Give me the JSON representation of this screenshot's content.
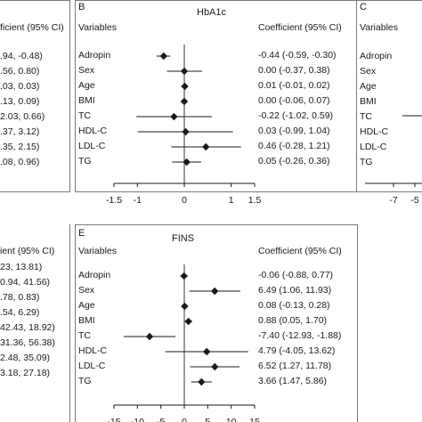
{
  "chart_data": [
    {
      "panel": "A",
      "type": "forest",
      "visible_header": "ficient (95% CI)",
      "rows": [
        {
          "text": ".94, -0.48)"
        },
        {
          "text": ".56, 0.80)"
        },
        {
          "text": ".03, 0.03)"
        },
        {
          "text": ".13, 0.09)"
        },
        {
          "text": "2.03, 0.66)"
        },
        {
          "text": ".37, 3.12)"
        },
        {
          "text": ".35, 2.15)"
        },
        {
          "text": ".08, 0.96)"
        }
      ]
    },
    {
      "panel": "B",
      "type": "forest",
      "title": "HbA1c",
      "var_header": "Variables",
      "coef_header": "Coefficient (95% CI)",
      "xlim": [
        -1.5,
        1.5
      ],
      "ticks": [
        -1.5,
        -1,
        0,
        1,
        1.5
      ],
      "rows": [
        {
          "variable": "Adropin",
          "est": -0.44,
          "lo": -0.59,
          "hi": -0.3,
          "text": "-0.44 (-0.59, -0.30)"
        },
        {
          "variable": "Sex",
          "est": 0.0,
          "lo": -0.37,
          "hi": 0.38,
          "text": "0.00 (-0.37, 0.38)"
        },
        {
          "variable": "Age",
          "est": 0.01,
          "lo": -0.01,
          "hi": 0.02,
          "text": "0.01 (-0.01, 0.02)"
        },
        {
          "variable": "BMI",
          "est": 0.0,
          "lo": -0.06,
          "hi": 0.07,
          "text": "0.00 (-0.06, 0.07)"
        },
        {
          "variable": "TC",
          "est": -0.22,
          "lo": -1.02,
          "hi": 0.59,
          "text": "-0.22 (-1.02, 0.59)"
        },
        {
          "variable": "HDL-C",
          "est": 0.03,
          "lo": -0.99,
          "hi": 1.04,
          "text": "0.03 (-0.99, 1.04)"
        },
        {
          "variable": "LDL-C",
          "est": 0.46,
          "lo": -0.28,
          "hi": 1.21,
          "text": "0.46 (-0.28, 1.21)"
        },
        {
          "variable": "TG",
          "est": 0.05,
          "lo": -0.26,
          "hi": 0.36,
          "text": "0.05 (-0.26, 0.36)"
        }
      ]
    },
    {
      "panel": "C",
      "type": "forest",
      "var_header": "Variables",
      "ticks": [
        -7,
        -5
      ],
      "rows": [
        {
          "variable": "Adropin"
        },
        {
          "variable": "Sex"
        },
        {
          "variable": "Age"
        },
        {
          "variable": "BMI"
        },
        {
          "variable": "TC"
        },
        {
          "variable": "HDL-C"
        },
        {
          "variable": "LDL-C"
        },
        {
          "variable": "TG"
        }
      ]
    },
    {
      "panel": "D",
      "type": "forest",
      "visible_header": "ient (95% CI)",
      "rows": [
        {
          "text": "23, 13.81)"
        },
        {
          "text": "0.94, 41.56)"
        },
        {
          "text": ".78, 0.83)"
        },
        {
          "text": ".54, 6.29)"
        },
        {
          "text": "42.43, 18.92)"
        },
        {
          "text": "31.36, 56.38)"
        },
        {
          "text": "2.48, 35.09)"
        },
        {
          "text": "3.18, 27.18)"
        }
      ]
    },
    {
      "panel": "E",
      "type": "forest",
      "title": "FINS",
      "var_header": "Variables",
      "coef_header": "Coefficient (95% CI)",
      "xlim": [
        -15,
        15
      ],
      "ticks": [
        -15,
        -10,
        -5,
        0,
        5,
        10,
        15
      ],
      "rows": [
        {
          "variable": "Adropin",
          "est": -0.06,
          "lo": -0.88,
          "hi": 0.77,
          "text": "-0.06 (-0.88, 0.77)"
        },
        {
          "variable": "Sex",
          "est": 6.49,
          "lo": 1.06,
          "hi": 11.93,
          "text": "6.49 (1.06, 11.93)"
        },
        {
          "variable": "Age",
          "est": 0.08,
          "lo": -0.13,
          "hi": 0.28,
          "text": "0.08 (-0.13, 0.28)"
        },
        {
          "variable": "BMI",
          "est": 0.88,
          "lo": 0.05,
          "hi": 1.7,
          "text": "0.88 (0.05, 1.70)"
        },
        {
          "variable": "TC",
          "est": -7.4,
          "lo": -12.93,
          "hi": -1.88,
          "text": "-7.40 (-12.93, -1.88)"
        },
        {
          "variable": "HDL-C",
          "est": 4.79,
          "lo": -4.05,
          "hi": 13.62,
          "text": "4.79 (-4.05, 13.62)"
        },
        {
          "variable": "LDL-C",
          "est": 6.52,
          "lo": 1.27,
          "hi": 11.78,
          "text": "6.52 (1.27, 11.78)"
        },
        {
          "variable": "TG",
          "est": 3.66,
          "lo": 1.47,
          "hi": 5.86,
          "text": "3.66 (1.47, 5.86)"
        }
      ]
    }
  ],
  "labels": {
    "b": "B",
    "c": "C",
    "e": "E"
  },
  "colors": {
    "ink": "#1a1a1a",
    "border": "#7a7a7a",
    "refline": "#333333"
  }
}
